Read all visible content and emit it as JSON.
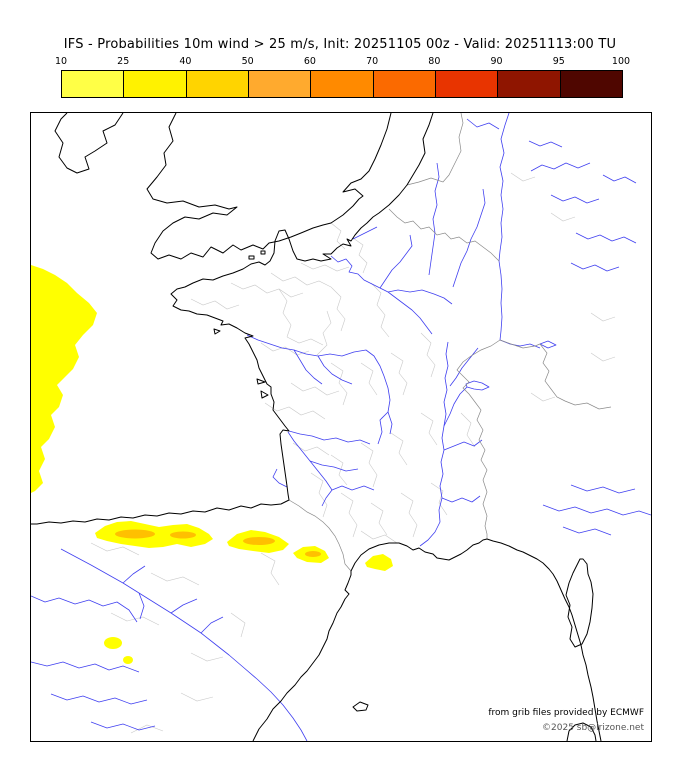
{
  "title": "IFS - Probabilities 10m wind > 25 m/s, Init: 20251105 00z - Valid: 20251113:00 TU",
  "scale": {
    "labels": [
      "10",
      "25",
      "40",
      "50",
      "60",
      "70",
      "80",
      "90",
      "95",
      "100"
    ],
    "colors": [
      "#ffff46",
      "#fff200",
      "#ffd400",
      "#ffaa2e",
      "#ff8a00",
      "#fb6a00",
      "#e83400",
      "#8f1500",
      "#4f0600"
    ]
  },
  "map": {
    "probability_fill_low": "#ffff00",
    "probability_fill_mid": "#ffc000",
    "river_color": "#4040f0",
    "coast_color": "#000000",
    "border_color": "#8a8a8a",
    "department_color": "#c9c9c9"
  },
  "attribution": {
    "line1": "from grib files provided by ECMWF",
    "line2": "©2025 sb@irizone.net"
  }
}
